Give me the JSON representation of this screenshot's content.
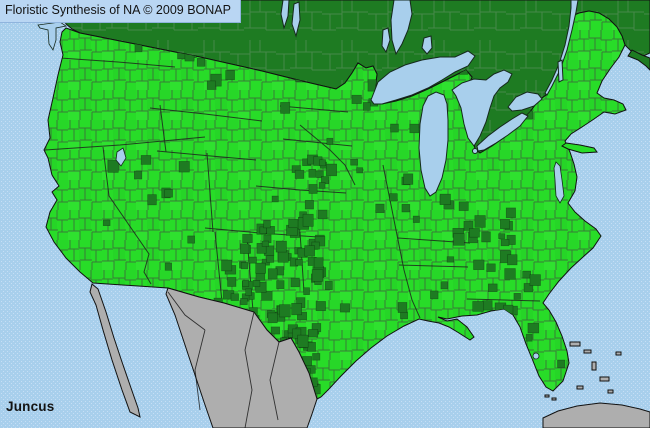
{
  "header": {
    "title": "Floristic Synthesis of NA © 2009 BONAP"
  },
  "footer": {
    "taxon_label": "Juncus"
  },
  "map": {
    "kind": "county-level distribution choropleth of North America",
    "region_fills": {
      "county_present": "#28dc28",
      "county_absent_or_canada": "#1e7b22",
      "outside_area_gray": "#aeaeae",
      "water": "#a8cfec"
    }
  },
  "colors": {
    "ocean": "#a8cfec",
    "dither": "#c6def5",
    "present": "#28dc28",
    "present_alt1": "#25cf27",
    "present_alt2": "#35e535",
    "absent": "#1e7b22",
    "outside": "#aeaeae",
    "countyline": "#3f5a3f",
    "canada_line": "#7a987a",
    "stateline": "#1c1c1c",
    "coastline": "#111111",
    "lake_stroke": "#15291c",
    "titlebar_bg": "#b9d6f3",
    "titlebar_border": "#8fb4dd",
    "text_dark": "#131313"
  }
}
